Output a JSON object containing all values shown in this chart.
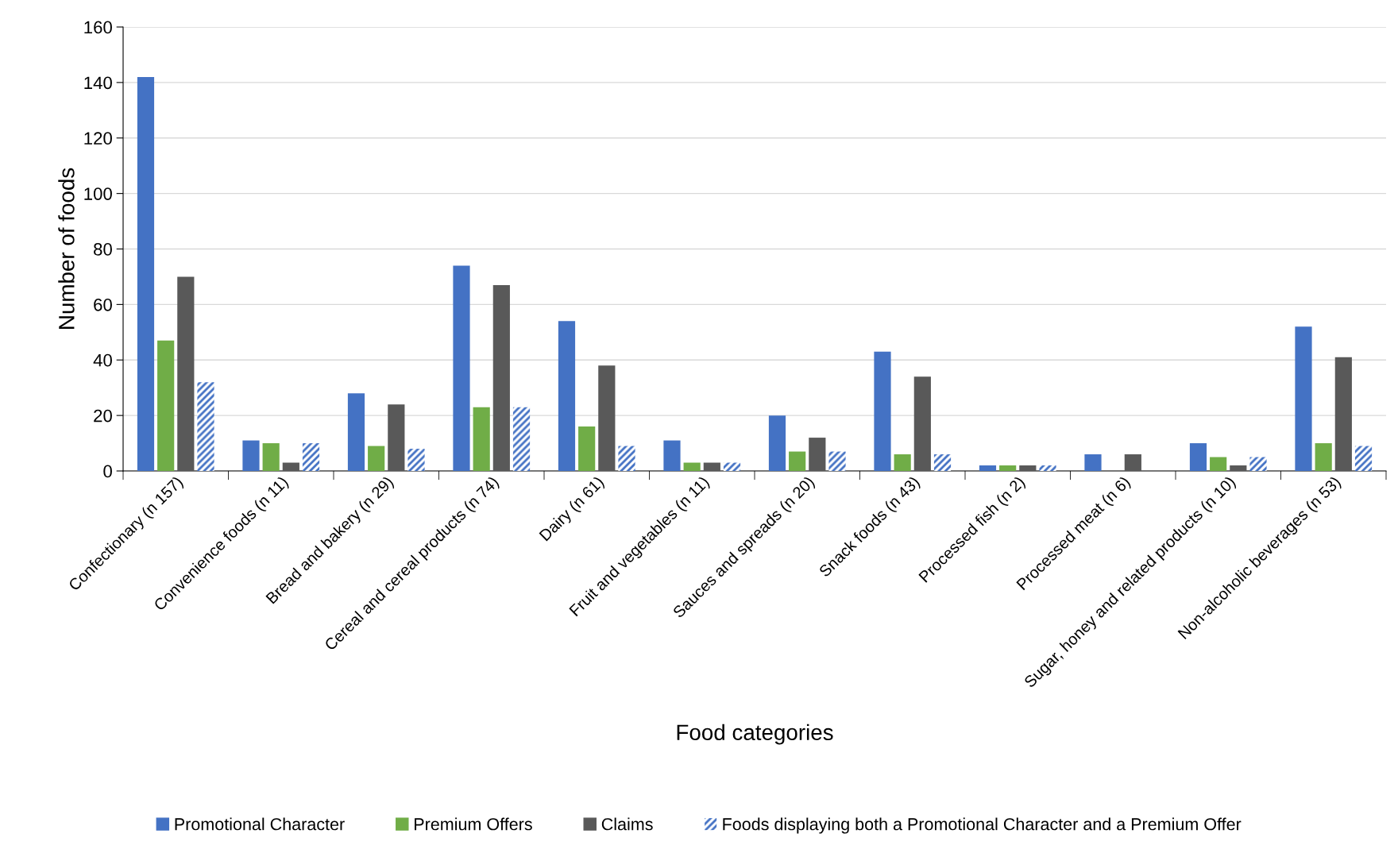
{
  "chart_data": {
    "type": "bar",
    "xlabel": "Food categories",
    "ylabel": "Number of foods",
    "categories": [
      "Confectionary (n 157)",
      "Convenience foods (n 11)",
      "Bread and bakery (n 29)",
      "Cereal and cereal products (n 74)",
      "Dairy (n 61)",
      "Fruit and vegetables (n 11)",
      "Sauces and spreads (n 20)",
      "Snack foods (n 43)",
      "Processed fish (n 2)",
      "Processed meat (n 6)",
      "Sugar, honey and related products (n 10)",
      "Non-alcoholic beverages (n 53)"
    ],
    "series": [
      {
        "name": "Promotional Character",
        "color": "#4472c4",
        "values": [
          142,
          11,
          28,
          74,
          54,
          11,
          20,
          43,
          2,
          6,
          10,
          52
        ]
      },
      {
        "name": "Premium Offers",
        "color": "#70ad47",
        "values": [
          47,
          10,
          9,
          23,
          16,
          3,
          7,
          6,
          2,
          0,
          5,
          10
        ]
      },
      {
        "name": "Claims",
        "color": "#595959",
        "values": [
          70,
          3,
          24,
          67,
          38,
          3,
          12,
          34,
          2,
          6,
          2,
          41
        ]
      },
      {
        "name": "Foods displaying both a Promotional Character and a Premium Offer",
        "color": "#4472c4",
        "values": [
          32,
          10,
          8,
          23,
          9,
          3,
          7,
          6,
          2,
          0,
          5,
          9
        ]
      }
    ],
    "ylim": [
      0,
      160
    ],
    "yticks": [
      0,
      20,
      40,
      60,
      80,
      100,
      120,
      140,
      160
    ],
    "grid": "y",
    "legend": "bottom"
  }
}
